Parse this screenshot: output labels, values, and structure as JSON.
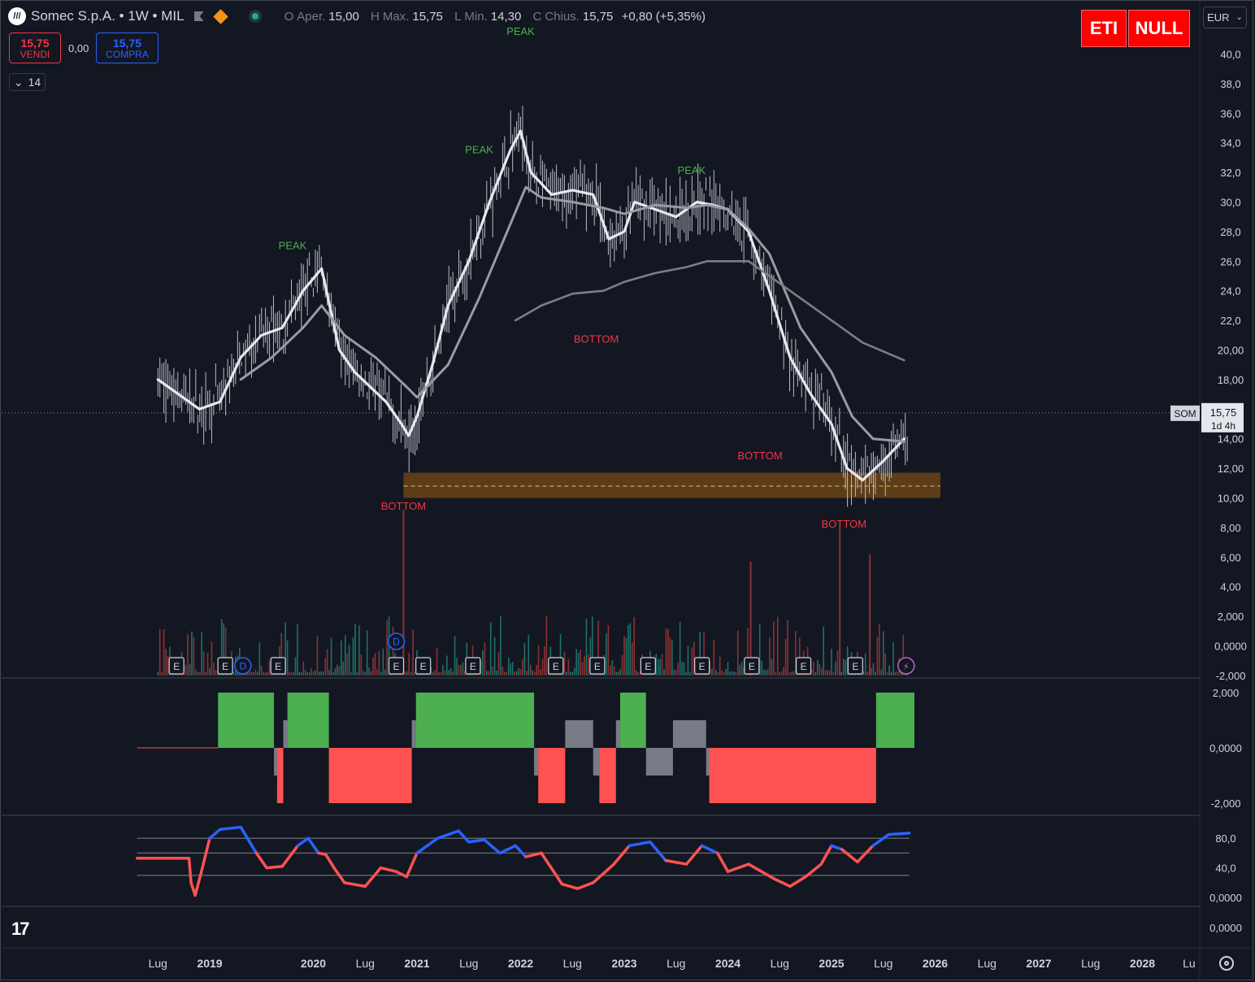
{
  "header": {
    "symbol": "Somec S.p.A. • 1W • MIL",
    "ohlc": [
      {
        "key": "O",
        "label": "Aper.",
        "value": "15,00"
      },
      {
        "key": "H",
        "label": "Max.",
        "value": "15,75"
      },
      {
        "key": "L",
        "label": "Min.",
        "value": "14,30"
      },
      {
        "key": "C",
        "label": "Chius.",
        "value": "15,75"
      }
    ],
    "change": "+0,80 (+5,35%)"
  },
  "trade": {
    "sell_price": "15,75",
    "sell_label": "VENDI",
    "spread": "0,00",
    "buy_price": "15,75",
    "buy_label": "COMPRA"
  },
  "indicator_collapse": "14",
  "badges": {
    "left": "ETI",
    "right": "NULL"
  },
  "currency": "EUR",
  "price_tag": {
    "symbol": "SOM",
    "price": "15,75",
    "countdown": "1d 4h"
  },
  "colors": {
    "background": "#131722",
    "up": "#26a69a",
    "down": "#ef5350",
    "peak": "#4caf50",
    "bottom": "#f23645",
    "zone": "#6b4416",
    "green_block": "#4caf50",
    "red_block": "#ff5252",
    "gray_block": "#787b86",
    "osc_up": "#2962ff",
    "osc_down": "#ff5252"
  },
  "chart_data": [
    {
      "type": "line",
      "panel": "price",
      "y_ticks": [
        "40,0",
        "38,0",
        "36,0",
        "34,0",
        "32,0",
        "30,0",
        "28,0",
        "26,0",
        "24,0",
        "22,0",
        "20,00",
        "18,00",
        "14,00",
        "12,00",
        "10,00",
        "8,00",
        "6,00",
        "4,00",
        "2,000",
        "0,0000",
        "-2,000"
      ],
      "ylim": [
        -2,
        41
      ],
      "x_ticks": [
        "Lug",
        "2019",
        "2020",
        "Lug",
        "2021",
        "Lug",
        "2022",
        "Lug",
        "2023",
        "Lug",
        "2024",
        "Lug",
        "2025",
        "Lug",
        "2026",
        "Lug",
        "2027",
        "Lug",
        "2028",
        "Lu"
      ],
      "xlim": [
        2018.3,
        2028.6
      ],
      "series": [
        {
          "x": [
            2018.5,
            2018.7,
            2018.9,
            2019.1,
            2019.3,
            2019.5,
            2019.7,
            2019.9,
            2020.08,
            2020.25,
            2020.4,
            2020.55,
            2020.7,
            2020.85,
            2020.92,
            2021.0,
            2021.15,
            2021.3,
            2021.5,
            2021.7,
            2021.9,
            2022.0,
            2022.1,
            2022.3,
            2022.5,
            2022.7,
            2022.85,
            2023.0,
            2023.1,
            2023.3,
            2023.5,
            2023.7,
            2023.85,
            2024.0,
            2024.2,
            2024.4,
            2024.6,
            2024.8,
            2025.0,
            2025.15,
            2025.3,
            2025.5,
            2025.7
          ],
          "y": [
            18.0,
            17.0,
            16.0,
            16.5,
            19.5,
            21.0,
            21.5,
            24.0,
            25.5,
            20.0,
            18.5,
            17.5,
            16.5,
            15.0,
            14.2,
            15.5,
            19.0,
            23.0,
            26.0,
            30.0,
            33.5,
            34.8,
            32.0,
            30.5,
            30.8,
            30.5,
            27.5,
            28.0,
            30.0,
            29.5,
            29.0,
            30.0,
            29.8,
            29.5,
            28.0,
            24.0,
            19.5,
            17.0,
            15.0,
            12.0,
            11.2,
            12.5,
            14.0
          ]
        },
        {
          "x": [
            2019.3,
            2019.6,
            2019.9,
            2020.08,
            2020.3,
            2020.6,
            2020.9,
            2021.0,
            2021.3,
            2021.6,
            2021.9,
            2022.05,
            2022.2,
            2022.5,
            2022.8,
            2023.0,
            2023.3,
            2023.6,
            2023.8,
            2024.0,
            2024.2,
            2024.4,
            2024.7,
            2025.0,
            2025.2,
            2025.4,
            2025.7
          ],
          "y": [
            18.0,
            19.5,
            21.5,
            23.0,
            21.0,
            19.5,
            17.5,
            16.8,
            19.0,
            23.5,
            28.5,
            31.0,
            30.3,
            30.0,
            29.6,
            29.2,
            29.8,
            29.6,
            29.8,
            29.5,
            28.2,
            26.5,
            21.5,
            18.5,
            15.5,
            14.0,
            13.8
          ]
        },
        {
          "x": [
            2021.95,
            2022.2,
            2022.5,
            2022.8,
            2023.0,
            2023.3,
            2023.6,
            2023.8,
            2024.0,
            2024.2,
            2024.4,
            2024.7,
            2025.0,
            2025.3,
            2025.7
          ],
          "y": [
            22.0,
            23.0,
            23.8,
            24.0,
            24.6,
            25.2,
            25.6,
            26.0,
            26.0,
            26.0,
            25.0,
            23.5,
            22.0,
            20.5,
            19.3
          ]
        }
      ],
      "volume_spikes": [
        {
          "x": 2020.87,
          "y": 9.2
        },
        {
          "x": 2024.22,
          "y": 5.7
        },
        {
          "x": 2025.08,
          "y": 8.0
        },
        {
          "x": 2025.37,
          "y": 6.2
        }
      ],
      "support_zone": {
        "x0": 2020.87,
        "x1": 2026.05,
        "y0": 10.0,
        "y1": 11.7,
        "mid": 10.8
      },
      "current_price": 15.75,
      "annotations": [
        {
          "text": "PEAK",
          "x": 2019.8,
          "y": 26.8,
          "kind": "peak"
        },
        {
          "text": "PEAK",
          "x": 2021.6,
          "y": 33.3,
          "kind": "peak"
        },
        {
          "text": "PEAK",
          "x": 2022.0,
          "y": 41.3,
          "kind": "peak"
        },
        {
          "text": "PEAK",
          "x": 2023.65,
          "y": 31.9,
          "kind": "peak"
        },
        {
          "text": "BOTTOM",
          "x": 2020.87,
          "y": 9.2,
          "kind": "bottom"
        },
        {
          "text": "BOTTOM",
          "x": 2022.73,
          "y": 20.5,
          "kind": "bottom"
        },
        {
          "text": "BOTTOM",
          "x": 2024.31,
          "y": 12.6,
          "kind": "bottom"
        },
        {
          "text": "BOTTOM",
          "x": 2025.12,
          "y": 8.0,
          "kind": "bottom"
        }
      ],
      "events": [
        {
          "label": "E",
          "x": 2018.68
        },
        {
          "label": "E",
          "x": 2019.15
        },
        {
          "label": "D",
          "x": 2019.32
        },
        {
          "label": "E",
          "x": 2019.66
        },
        {
          "label": "D",
          "x": 2020.8
        },
        {
          "label": "E",
          "x": 2020.8
        },
        {
          "label": "E",
          "x": 2021.06
        },
        {
          "label": "E",
          "x": 2021.54
        },
        {
          "label": "E",
          "x": 2022.34
        },
        {
          "label": "E",
          "x": 2022.74
        },
        {
          "label": "E",
          "x": 2023.23
        },
        {
          "label": "E",
          "x": 2023.75
        },
        {
          "label": "E",
          "x": 2024.23
        },
        {
          "label": "E",
          "x": 2024.73
        },
        {
          "label": "E",
          "x": 2025.23
        },
        {
          "label": "⚡",
          "x": 2025.72
        }
      ]
    },
    {
      "type": "bar",
      "panel": "trend",
      "y_ticks": [
        "2,000",
        "0,0000",
        "-2,000"
      ],
      "ylim": [
        -2,
        2
      ],
      "blocks": [
        {
          "x0": 2019.08,
          "x1": 2019.62,
          "v": 2,
          "c": "green"
        },
        {
          "x0": 2019.62,
          "x1": 2019.65,
          "v": -1,
          "c": "gray"
        },
        {
          "x0": 2019.65,
          "x1": 2019.71,
          "v": -2,
          "c": "red"
        },
        {
          "x0": 2019.71,
          "x1": 2019.75,
          "v": 1,
          "c": "gray"
        },
        {
          "x0": 2019.75,
          "x1": 2020.15,
          "v": 2,
          "c": "green"
        },
        {
          "x0": 2020.15,
          "x1": 2020.95,
          "v": -2,
          "c": "red"
        },
        {
          "x0": 2020.95,
          "x1": 2020.99,
          "v": 1,
          "c": "gray"
        },
        {
          "x0": 2020.99,
          "x1": 2022.13,
          "v": 2,
          "c": "green"
        },
        {
          "x0": 2022.13,
          "x1": 2022.17,
          "v": -1,
          "c": "gray"
        },
        {
          "x0": 2022.17,
          "x1": 2022.43,
          "v": -2,
          "c": "red"
        },
        {
          "x0": 2022.43,
          "x1": 2022.7,
          "v": 1,
          "c": "gray"
        },
        {
          "x0": 2022.7,
          "x1": 2022.76,
          "v": -1,
          "c": "gray"
        },
        {
          "x0": 2022.76,
          "x1": 2022.92,
          "v": -2,
          "c": "red"
        },
        {
          "x0": 2022.92,
          "x1": 2022.96,
          "v": 1,
          "c": "gray"
        },
        {
          "x0": 2022.96,
          "x1": 2023.21,
          "v": 2,
          "c": "green"
        },
        {
          "x0": 2023.21,
          "x1": 2023.47,
          "v": -1,
          "c": "gray"
        },
        {
          "x0": 2023.47,
          "x1": 2023.79,
          "v": 1,
          "c": "gray"
        },
        {
          "x0": 2023.79,
          "x1": 2023.82,
          "v": -1,
          "c": "gray"
        },
        {
          "x0": 2023.82,
          "x1": 2025.43,
          "v": -2,
          "c": "red"
        },
        {
          "x0": 2025.43,
          "x1": 2025.8,
          "v": 2,
          "c": "green"
        }
      ]
    },
    {
      "type": "line",
      "panel": "oscillator",
      "y_ticks": [
        "80,0",
        "40,0",
        "0,0000"
      ],
      "levels": [
        80,
        60,
        30
      ],
      "ylim": [
        -5,
        100
      ],
      "x": [
        2018.3,
        2018.8,
        2018.82,
        2018.86,
        2018.92,
        2019.0,
        2019.1,
        2019.3,
        2019.45,
        2019.55,
        2019.7,
        2019.85,
        2019.95,
        2020.05,
        2020.12,
        2020.2,
        2020.3,
        2020.5,
        2020.65,
        2020.8,
        2020.9,
        2021.0,
        2021.2,
        2021.4,
        2021.5,
        2021.65,
        2021.8,
        2021.95,
        2022.05,
        2022.2,
        2022.4,
        2022.55,
        2022.7,
        2022.9,
        2023.05,
        2023.25,
        2023.4,
        2023.6,
        2023.75,
        2023.9,
        2024.0,
        2024.2,
        2024.45,
        2024.6,
        2024.75,
        2024.9,
        2025.0,
        2025.1,
        2025.25,
        2025.4,
        2025.55,
        2025.75
      ],
      "y": [
        53,
        53,
        20,
        3,
        35,
        80,
        92,
        95,
        60,
        40,
        42,
        70,
        80,
        60,
        58,
        40,
        20,
        15,
        40,
        35,
        28,
        60,
        80,
        90,
        75,
        78,
        60,
        70,
        55,
        60,
        18,
        12,
        20,
        45,
        70,
        75,
        50,
        45,
        70,
        60,
        35,
        45,
        25,
        15,
        28,
        45,
        70,
        65,
        48,
        70,
        85,
        87
      ],
      "series_threshold": 60
    }
  ]
}
